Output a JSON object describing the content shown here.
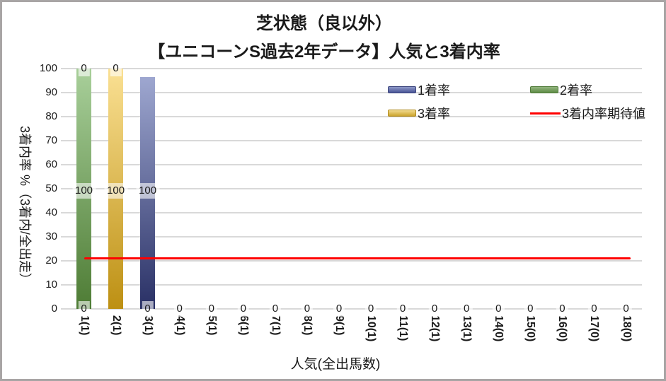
{
  "window": {
    "background": "#FFFFFF",
    "border_color": "#A8A5A5"
  },
  "chart_data": {
    "type": "bar",
    "stacked": true,
    "title_line1": "芝状態（良以外）",
    "title_line2": "【ユニコーンS過去2年データ】人気と3着内率",
    "xlabel": "人気(全出馬数)",
    "ylabel": "3着内率 %（3着内/全出走）",
    "ylim": [
      0,
      100
    ],
    "yticks": [
      "100",
      "90",
      "80",
      "70",
      "60",
      "50",
      "40",
      "30",
      "20",
      "10",
      "0"
    ],
    "grid": "horizontal",
    "grid_color": "#D9D9D9",
    "categories": [
      "1(1)",
      "2(1)",
      "3(1)",
      "4(1)",
      "5(1)",
      "6(1)",
      "7(1)",
      "8(1)",
      "9(1)",
      "10(1)",
      "11(1)",
      "12(1)",
      "13(1)",
      "14(0)",
      "15(0)",
      "16(0)",
      "17(0)",
      "18(0)"
    ],
    "series": [
      {
        "name": "1着率",
        "type": "bar",
        "gradient": [
          "#9EA7D0",
          "#293065"
        ],
        "values": [
          0,
          0,
          100,
          0,
          0,
          0,
          0,
          0,
          0,
          0,
          0,
          0,
          0,
          0,
          0,
          0,
          0,
          0
        ]
      },
      {
        "name": "2着率",
        "type": "bar",
        "gradient": [
          "#A8CF9A",
          "#4E7C35"
        ],
        "values": [
          100,
          0,
          0,
          0,
          0,
          0,
          0,
          0,
          0,
          0,
          0,
          0,
          0,
          0,
          0,
          0,
          0,
          0
        ]
      },
      {
        "name": "3着率",
        "type": "bar",
        "gradient": [
          "#FAE093",
          "#BD9013"
        ],
        "values": [
          0,
          100,
          0,
          0,
          0,
          0,
          0,
          0,
          0,
          0,
          0,
          0,
          0,
          0,
          0,
          0,
          0,
          0
        ]
      },
      {
        "name": "3着内率期待値",
        "type": "line",
        "color": "#FF0000",
        "value": 21
      }
    ],
    "visible_bars": [
      {
        "cat": 0,
        "series": 1,
        "value": 100,
        "display_top": 100
      },
      {
        "cat": 1,
        "series": 2,
        "value": 100,
        "display_top": 100
      },
      {
        "cat": 2,
        "series": 0,
        "value": 100,
        "display_top": 96.5
      }
    ],
    "value_labels": [
      {
        "c": 0,
        "l": 100,
        "t": "0"
      },
      {
        "c": 1,
        "l": 100,
        "t": "0"
      },
      {
        "c": 0,
        "l": 49,
        "t": "100"
      },
      {
        "c": 1,
        "l": 49,
        "t": "100"
      },
      {
        "c": 2,
        "l": 49,
        "t": "100"
      },
      {
        "c": 0,
        "l": 0,
        "t": "0"
      },
      {
        "c": 2,
        "l": 0,
        "t": "0"
      },
      {
        "c": 3,
        "l": 0,
        "t": "0"
      },
      {
        "c": 4,
        "l": 0,
        "t": "0"
      },
      {
        "c": 5,
        "l": 0,
        "t": "0"
      },
      {
        "c": 6,
        "l": 0,
        "t": "0"
      },
      {
        "c": 7,
        "l": 0,
        "t": "0"
      },
      {
        "c": 8,
        "l": 0,
        "t": "0"
      },
      {
        "c": 9,
        "l": 0,
        "t": "0"
      },
      {
        "c": 10,
        "l": 0,
        "t": "0"
      },
      {
        "c": 11,
        "l": 0,
        "t": "0"
      },
      {
        "c": 12,
        "l": 0,
        "t": "0"
      },
      {
        "c": 13,
        "l": 0,
        "t": "0"
      },
      {
        "c": 14,
        "l": 0,
        "t": "0"
      },
      {
        "c": 15,
        "l": 0,
        "t": "0"
      },
      {
        "c": 16,
        "l": 0,
        "t": "0"
      },
      {
        "c": 17,
        "l": 0,
        "t": "0"
      }
    ],
    "expected_line": {
      "name": "3着内率期待値",
      "value": 21,
      "color": "#FF0000"
    },
    "legend": {
      "position": "top-right-two-rows",
      "entries": [
        {
          "label": "1着率",
          "swatch": "bar",
          "gradient": [
            "#8D98C8",
            "#4A5596"
          ],
          "border": "#39427A",
          "row": 0,
          "col": 0
        },
        {
          "label": "2着率",
          "swatch": "bar",
          "gradient": [
            "#92B57E",
            "#5F8D46"
          ],
          "border": "#4F7A38",
          "row": 0,
          "col": 1
        },
        {
          "label": "3着率",
          "swatch": "bar",
          "gradient": [
            "#F2DB90",
            "#CBA32D"
          ],
          "border": "#B08A1D",
          "row": 1,
          "col": 0
        },
        {
          "label": "3着内率期待値",
          "swatch": "line",
          "color": "#FF0000",
          "row": 1,
          "col": 1
        }
      ]
    }
  }
}
